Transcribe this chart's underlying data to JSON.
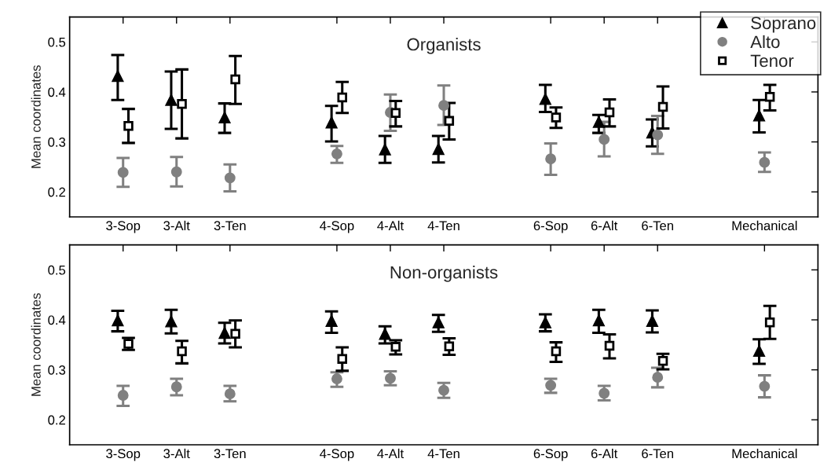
{
  "chart_data": [
    {
      "type": "scatter",
      "title": "Organists",
      "ylabel": "Mean coordinates",
      "ylim": [
        0.15,
        0.55
      ],
      "yticks": [
        0.2,
        0.3,
        0.4,
        0.5
      ],
      "categories": [
        "3-Sop",
        "3-Alt",
        "3-Ten",
        null,
        "4-Sop",
        "4-Alt",
        "4-Ten",
        null,
        "6-Sop",
        "6-Alt",
        "6-Ten",
        null,
        "Mechanical"
      ],
      "legend": "top right",
      "grid": false,
      "series": [
        {
          "name": "Soprano",
          "color": "#000000",
          "marker": "triangle",
          "values": [
            0.432,
            0.384,
            0.349,
            null,
            0.339,
            0.285,
            0.286,
            null,
            0.386,
            0.34,
            0.319,
            null,
            0.353
          ],
          "errors": [
            [
              0.384,
              0.474
            ],
            [
              0.326,
              0.441
            ],
            [
              0.318,
              0.377
            ],
            null,
            [
              0.301,
              0.372
            ],
            [
              0.258,
              0.312
            ],
            [
              0.259,
              0.312
            ],
            null,
            [
              0.36,
              0.414
            ],
            [
              0.318,
              0.354
            ],
            [
              0.291,
              0.345
            ],
            null,
            [
              0.319,
              0.384
            ]
          ]
        },
        {
          "name": "Alto",
          "color": "#808080",
          "marker": "circle",
          "values": [
            0.239,
            0.24,
            0.228,
            null,
            0.276,
            0.359,
            0.373,
            null,
            0.266,
            0.305,
            0.314,
            null,
            0.259
          ],
          "errors": [
            [
              0.21,
              0.268
            ],
            [
              0.211,
              0.27
            ],
            [
              0.201,
              0.255
            ],
            null,
            [
              0.258,
              0.292
            ],
            [
              0.322,
              0.395
            ],
            [
              0.334,
              0.413
            ],
            null,
            [
              0.234,
              0.297
            ],
            [
              0.271,
              0.34
            ],
            [
              0.276,
              0.352
            ],
            null,
            [
              0.24,
              0.279
            ]
          ]
        },
        {
          "name": "Tenor",
          "color": "#000000",
          "marker": "square",
          "values": [
            0.332,
            0.376,
            0.425,
            null,
            0.389,
            0.358,
            0.342,
            null,
            0.349,
            0.359,
            0.37,
            null,
            0.39
          ],
          "errors": [
            [
              0.298,
              0.366
            ],
            [
              0.307,
              0.445
            ],
            [
              0.376,
              0.472
            ],
            null,
            [
              0.358,
              0.42
            ],
            [
              0.331,
              0.382
            ],
            [
              0.305,
              0.378
            ],
            null,
            [
              0.328,
              0.369
            ],
            [
              0.331,
              0.385
            ],
            [
              0.327,
              0.411
            ],
            null,
            [
              0.363,
              0.414
            ]
          ]
        }
      ]
    },
    {
      "type": "scatter",
      "title": "Non-organists",
      "ylabel": "Mean coordinates",
      "ylim": [
        0.15,
        0.55
      ],
      "yticks": [
        0.2,
        0.3,
        0.4,
        0.5
      ],
      "categories": [
        "3-Sop",
        "3-Alt",
        "3-Ten",
        null,
        "4-Sop",
        "4-Alt",
        "4-Ten",
        null,
        "6-Sop",
        "6-Alt",
        "6-Ten",
        null,
        "Mechanical"
      ],
      "legend": false,
      "grid": false,
      "series": [
        {
          "color": "#000000",
          "marker": "triangle",
          "values": [
            0.399,
            0.397,
            0.374,
            null,
            0.398,
            0.372,
            0.395,
            null,
            0.395,
            0.399,
            0.398,
            null,
            0.338
          ],
          "errors": [
            [
              0.377,
              0.418
            ],
            [
              0.373,
              0.42
            ],
            [
              0.353,
              0.394
            ],
            null,
            [
              0.374,
              0.417
            ],
            [
              0.353,
              0.387
            ],
            [
              0.376,
              0.41
            ],
            null,
            [
              0.377,
              0.411
            ],
            [
              0.374,
              0.42
            ],
            [
              0.375,
              0.419
            ],
            null,
            [
              0.312,
              0.361
            ]
          ]
        },
        {
          "color": "#808080",
          "marker": "circle",
          "values": [
            0.249,
            0.266,
            0.252,
            null,
            0.282,
            0.283,
            0.259,
            null,
            0.269,
            0.253,
            0.285,
            null,
            0.267
          ],
          "errors": [
            [
              0.228,
              0.268
            ],
            [
              0.249,
              0.282
            ],
            [
              0.237,
              0.268
            ],
            null,
            [
              0.266,
              0.295
            ],
            [
              0.269,
              0.297
            ],
            [
              0.244,
              0.274
            ],
            null,
            [
              0.254,
              0.282
            ],
            [
              0.239,
              0.268
            ],
            [
              0.265,
              0.304
            ],
            null,
            [
              0.245,
              0.289
            ]
          ]
        },
        {
          "color": "#000000",
          "marker": "square",
          "values": [
            0.352,
            0.337,
            0.372,
            null,
            0.322,
            0.346,
            0.347,
            null,
            0.337,
            0.348,
            0.318,
            null,
            0.395
          ],
          "errors": [
            [
              0.34,
              0.364
            ],
            [
              0.313,
              0.358
            ],
            [
              0.345,
              0.399
            ],
            null,
            [
              0.298,
              0.345
            ],
            [
              0.331,
              0.359
            ],
            [
              0.33,
              0.363
            ],
            null,
            [
              0.316,
              0.355
            ],
            [
              0.323,
              0.371
            ],
            [
              0.301,
              0.332
            ],
            null,
            [
              0.362,
              0.428
            ]
          ]
        }
      ]
    }
  ]
}
